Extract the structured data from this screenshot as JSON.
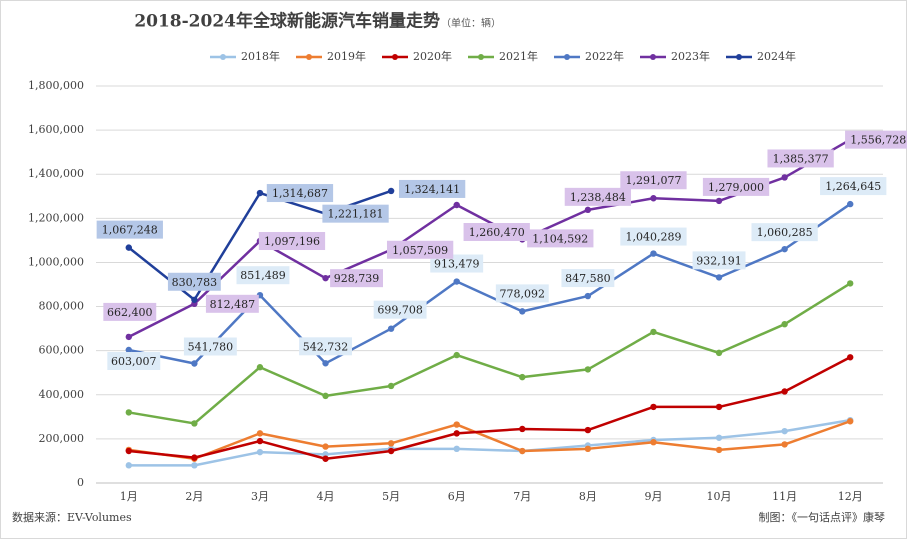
{
  "chart_data": {
    "type": "line",
    "title": "2018-2024年全球新能源汽车销量走势",
    "subtitle": "（单位：辆）",
    "source": "数据来源：EV-Volumes",
    "credit": "制图：《一句话点评》康琴",
    "categories": [
      "1月",
      "2月",
      "3月",
      "4月",
      "5月",
      "6月",
      "7月",
      "8月",
      "9月",
      "10月",
      "11月",
      "12月"
    ],
    "ylim": [
      0,
      1800000
    ],
    "yticks": [
      0,
      {
        "value": 200000,
        "label": "200,000"
      },
      {
        "value": 400000,
        "label": "400,000"
      },
      {
        "value": 600000,
        "label": "600,000"
      },
      {
        "value": 800000,
        "label": "800,000"
      },
      {
        "value": 1000000,
        "label": "1,000,000"
      },
      {
        "value": 1200000,
        "label": "1,200,000"
      },
      {
        "value": 1400000,
        "label": "1,400,000"
      },
      {
        "value": 1600000,
        "label": "1,600,000"
      },
      {
        "value": 1800000,
        "label": "1,800,000"
      }
    ],
    "grid": true,
    "legend": "top",
    "series": [
      {
        "name": "2018年",
        "color": "#9dc3e6",
        "values": [
          80000,
          80000,
          140000,
          130000,
          155000,
          155000,
          145000,
          170000,
          195000,
          205000,
          235000,
          285000
        ]
      },
      {
        "name": "2019年",
        "color": "#ed7d31",
        "values": [
          150000,
          110000,
          225000,
          165000,
          180000,
          265000,
          145000,
          155000,
          185000,
          150000,
          175000,
          280000
        ]
      },
      {
        "name": "2020年",
        "color": "#c00000",
        "values": [
          145000,
          115000,
          190000,
          110000,
          145000,
          225000,
          245000,
          240000,
          345000,
          345000,
          415000,
          570000
        ]
      },
      {
        "name": "2021年",
        "color": "#70ad47",
        "values": [
          320000,
          270000,
          525000,
          395000,
          440000,
          580000,
          480000,
          515000,
          685000,
          590000,
          720000,
          905000
        ]
      },
      {
        "name": "2022年",
        "color": "#4f78c4",
        "values": [
          603007,
          541780,
          851489,
          542732,
          699708,
          913479,
          778092,
          847580,
          1040289,
          932191,
          1060285,
          1264645
        ],
        "value_labels": [
          "603,007",
          "541,780",
          "851,489",
          "542,732",
          "699,708",
          "913,479",
          "778,092",
          "847,580",
          "1,040,289",
          "932,191",
          "1,060,285",
          "1,264,645"
        ]
      },
      {
        "name": "2023年",
        "color": "#7030a0",
        "values": [
          662400,
          812487,
          1097196,
          928739,
          1057509,
          1260470,
          1104592,
          1238484,
          1291077,
          1279000,
          1385377,
          1556728
        ],
        "value_labels": [
          "662,400",
          "812,487",
          "1,097,196",
          "928,739",
          "1,057,509",
          "1,260,470",
          "1,104,592",
          "1,238,484",
          "1,291,077",
          "1,279,000",
          "1,385,377",
          "1,556,728"
        ]
      },
      {
        "name": "2024年",
        "color": "#203f9a",
        "values": [
          1067248,
          830783,
          1314687,
          1221181,
          1324141,
          null,
          null,
          null,
          null,
          null,
          null,
          null
        ],
        "value_labels": [
          "1,067,248",
          "830,783",
          "1,314,687",
          "1,221,181",
          "1,324,141",
          null,
          null,
          null,
          null,
          null,
          null,
          null
        ]
      }
    ]
  }
}
